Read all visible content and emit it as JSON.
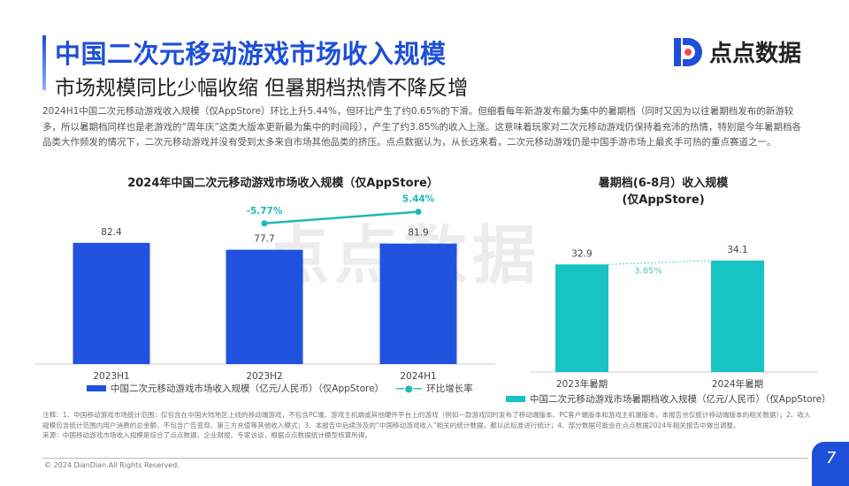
{
  "header": {
    "title": "中国二次元移动游戏市场收入规模",
    "subtitle": "市场规模同比少幅收缩 但暑期档热情不降反增",
    "logo_text": "点点数据"
  },
  "paragraph": "2024H1中国二次元移动游戏收入规模（仅AppStore）环比上升5.44%，但环比产生了约0.65%的下滑。但细看每年新游发布最为集中的暑期档（同时又因为以往暑期档发布的新游较多，所以暑期档同样也是老游戏的“周年庆”这类大版本更新最为集中的时间段），产生了约3.85%的收入上涨。这意味着玩家对二次元移动游戏仍保持着充沛的热情，特别是今年暑期档各品类大作频发的情况下，二次元移动游戏并没有受到太多来自市场其他品类的挤压。点点数据认为，从长远来看，二次元移动游戏仍是中国手游市场上最炙手可热的重点赛道之一。",
  "watermark": "点点数据",
  "chart_data": [
    {
      "type": "bar",
      "title": "2024年中国二次元移动游戏市场收入规模（仅AppStore）",
      "categories": [
        "2023H1",
        "2023H2",
        "2024H1"
      ],
      "series": [
        {
          "name": "中国二次元移动游戏市场收入规模（亿元/人民币）（仅AppStore）",
          "type": "bar",
          "values": [
            82.4,
            77.7,
            81.9
          ],
          "color": "#2152de"
        },
        {
          "name": "环比增长率",
          "type": "line",
          "values": [
            null,
            -5.77,
            5.44
          ],
          "labels": [
            "",
            "-5.77%",
            "5.44%"
          ],
          "color": "#1fb8b8"
        }
      ],
      "grid": false,
      "legend": "bottom"
    },
    {
      "type": "bar",
      "title": "暑期档(6-8月）收入规模（仅AppStore）",
      "title_lines": [
        "暑期档(6-8月）收入规模",
        "(仅AppStore)"
      ],
      "categories": [
        "2023年暑期",
        "2024年暑期"
      ],
      "series": [
        {
          "name": "中国二次元移动游戏市场暑期档收入规模（亿元/人民币）（仅AppStore）",
          "values": [
            32.9,
            34.1
          ],
          "color": "#17c3c3"
        }
      ],
      "annotation": "3.85%",
      "grid": false,
      "legend": "bottom"
    }
  ],
  "notes": [
    "注释：1、中国移动游戏市场统计范围：仅包含在中国大陆地区上线的移动端游戏，不包含PC端、游戏主机端或其他硬件平台上的游戏（例如一款游戏同时发布了移动端版本、PC客户端版本和游戏主机端版本，本报告也仅统计移动端版本的相关数据）；2、收入规模包含统计范围内用户消费的总金额，不包含广告变现、第三方充值等其他收入模式；3、本报告中后续涉及的“中国移动游戏收入”相关的统计数据，都以此标准进行统计；4、部分数据可能会在点点数据2024年相关报告中做出调整。",
    "来源：中国移动游戏市场收入规模是综合了点点数据、企业财报、专家访谈，根据点点数据统计模型核算所得。"
  ],
  "footer": {
    "copyright": "© 2024 DianDian.All Rights Reserved.",
    "page": "7"
  }
}
